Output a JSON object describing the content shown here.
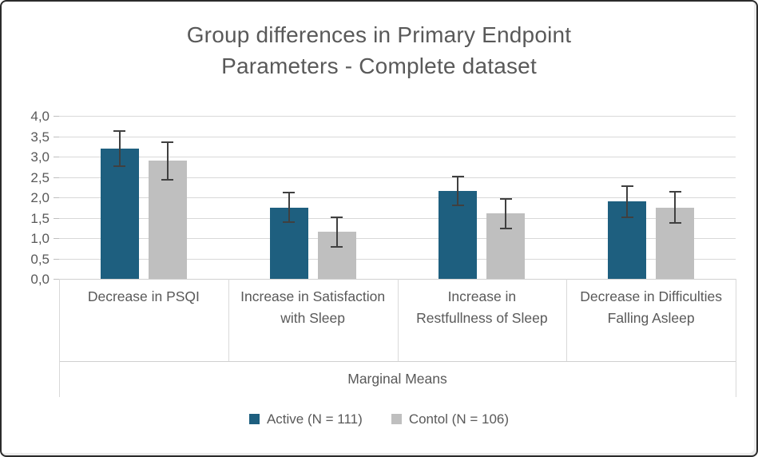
{
  "frame": {
    "background": "#ffffff",
    "border_color": "#2b2b2b"
  },
  "chart_data": {
    "type": "bar",
    "title": "Group differences in Primary Endpoint Parameters - Complete dataset",
    "title_lines": [
      "Group differences in Primary Endpoint",
      "Parameters - Complete dataset"
    ],
    "categories": [
      "Decrease in PSQI",
      "Increase in Satisfaction with Sleep",
      "Increase in Restfullness of Sleep",
      "Decrease in Difficulties Falling Asleep"
    ],
    "axis_group_label": "Marginal Means",
    "series": [
      {
        "name": "Active (N = 111)",
        "color": "#1e5f7f",
        "values": [
          3.2,
          1.75,
          2.15,
          1.9
        ],
        "errors": [
          0.45,
          0.38,
          0.37,
          0.4
        ]
      },
      {
        "name": "Contol (N = 106)",
        "color": "#bfbfbf",
        "values": [
          2.9,
          1.15,
          1.6,
          1.75
        ],
        "errors": [
          0.48,
          0.38,
          0.38,
          0.4
        ]
      }
    ],
    "ylim": [
      0,
      4
    ],
    "ytick_step": 0.5,
    "ytick_labels": [
      "0,0",
      "0,5",
      "1,0",
      "1,5",
      "2,0",
      "2,5",
      "3,0",
      "3,5",
      "4,0"
    ],
    "grid": true,
    "legend_position": "bottom",
    "error_bar_color": "#404040",
    "grid_color": "#d9d9d9",
    "text_color": "#595959"
  }
}
